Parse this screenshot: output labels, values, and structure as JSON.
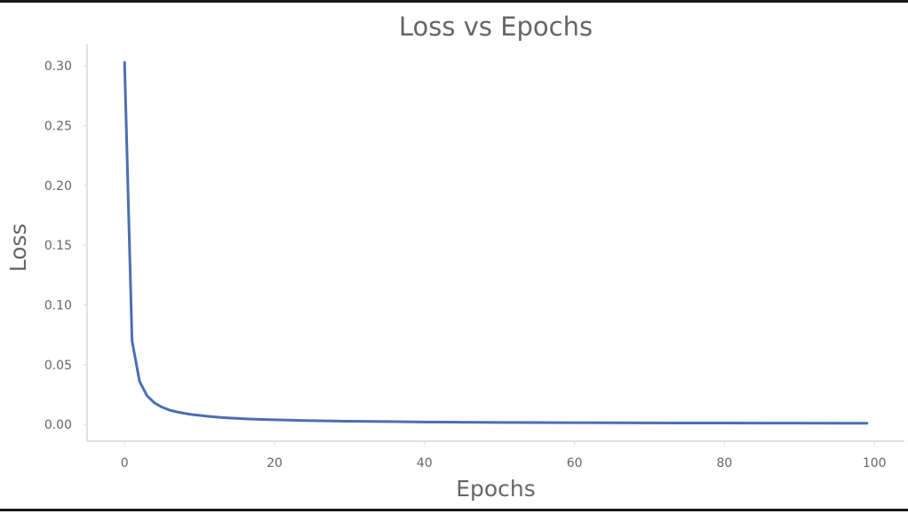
{
  "chart_data": {
    "type": "line",
    "title": "Loss vs Epochs",
    "xlabel": "Epochs",
    "ylabel": "Loss",
    "xlim": [
      -5,
      104
    ],
    "ylim": [
      -0.014,
      0.318
    ],
    "xticks": [
      0,
      20,
      40,
      60,
      80,
      100
    ],
    "xtick_labels": [
      "0",
      "20",
      "40",
      "60",
      "80",
      "100"
    ],
    "yticks": [
      0.0,
      0.05,
      0.1,
      0.15,
      0.2,
      0.25,
      0.3
    ],
    "ytick_labels": [
      "0.00",
      "0.05",
      "0.10",
      "0.15",
      "0.20",
      "0.25",
      "0.30"
    ],
    "grid": false,
    "line_color": "#4c6eb4",
    "series": [
      {
        "x": [
          0,
          1,
          2,
          3,
          4,
          5,
          6,
          7,
          8,
          9,
          10,
          11,
          12,
          13,
          14,
          15,
          16,
          17,
          18,
          19,
          20,
          22,
          24,
          26,
          28,
          30,
          35,
          40,
          45,
          50,
          55,
          60,
          65,
          70,
          75,
          80,
          85,
          90,
          95,
          99
        ],
        "values": [
          0.303,
          0.07,
          0.036,
          0.024,
          0.018,
          0.0145,
          0.012,
          0.0105,
          0.0093,
          0.0083,
          0.0076,
          0.0069,
          0.0063,
          0.0058,
          0.0054,
          0.0051,
          0.0048,
          0.0045,
          0.0043,
          0.0041,
          0.0039,
          0.0036,
          0.0033,
          0.0031,
          0.0029,
          0.0027,
          0.0024,
          0.0021,
          0.0019,
          0.0017,
          0.0016,
          0.0015,
          0.0014,
          0.0013,
          0.0012,
          0.0012,
          0.0011,
          0.0011,
          0.001,
          0.001
        ]
      }
    ]
  }
}
